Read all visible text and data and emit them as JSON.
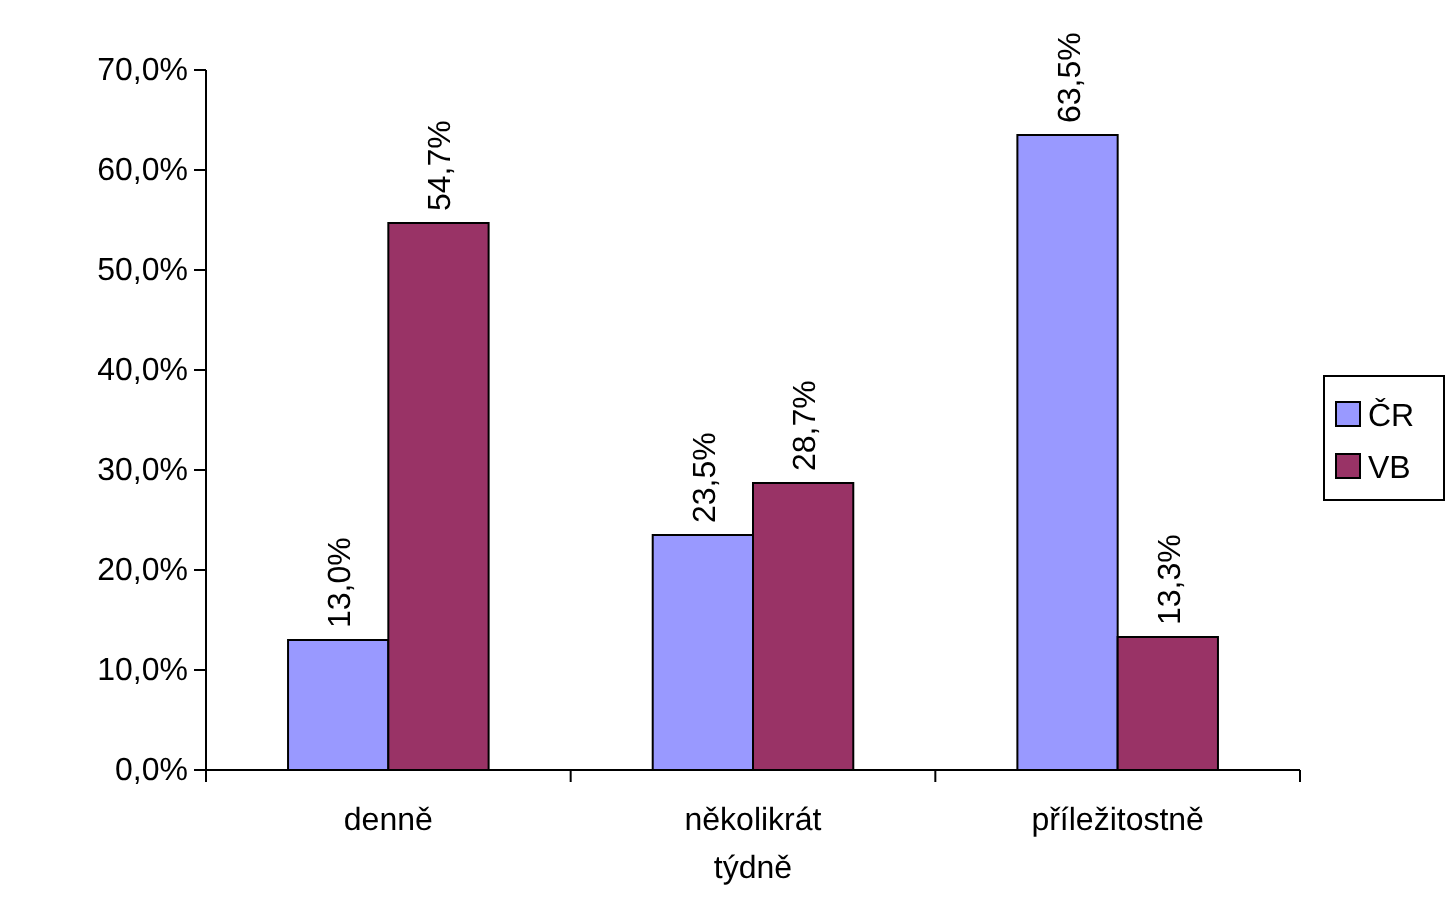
{
  "chart_data": {
    "type": "bar",
    "categories": [
      "denně",
      "několikrát týdně",
      "příležitostně"
    ],
    "series": [
      {
        "name": "ČR",
        "color": "#9999ff",
        "values": [
          13.0,
          23.5,
          63.5
        ],
        "value_labels": [
          "13,0%",
          "23,5%",
          "63,5%"
        ]
      },
      {
        "name": "VB",
        "color": "#993366",
        "values": [
          54.7,
          28.7,
          13.3
        ],
        "value_labels": [
          "54,7%",
          "28,7%",
          "13,3%"
        ]
      }
    ],
    "ylim": [
      0,
      70
    ],
    "yticks": [
      {
        "value": 0,
        "label": "0,0%"
      },
      {
        "value": 10,
        "label": "10,0%"
      },
      {
        "value": 20,
        "label": "20,0%"
      },
      {
        "value": 30,
        "label": "30,0%"
      },
      {
        "value": 40,
        "label": "40,0%"
      },
      {
        "value": 50,
        "label": "50,0%"
      },
      {
        "value": 60,
        "label": "60,0%"
      },
      {
        "value": 70,
        "label": "70,0%"
      }
    ],
    "grid": false,
    "legend": "right"
  }
}
